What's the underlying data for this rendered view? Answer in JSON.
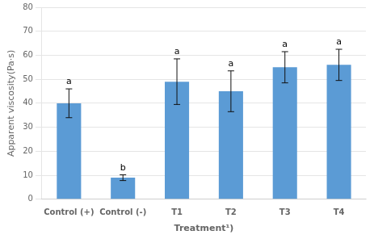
{
  "chart_data": {
    "type": "bar",
    "categories": [
      "Control (+)",
      "Control (-)",
      "T1",
      "T2",
      "T3",
      "T4"
    ],
    "values": [
      40.0,
      9.0,
      49.0,
      45.0,
      55.0,
      56.0
    ],
    "errors": [
      6.0,
      1.2,
      9.5,
      8.5,
      6.5,
      6.5
    ],
    "letters": [
      "a",
      "b",
      "a",
      "a",
      "a",
      "a"
    ],
    "color": "#5B9BD5",
    "xlabel": "Treatment¹)",
    "ylabel": "Apparent viscosity(Pa·s)",
    "ylim": [
      0,
      80
    ],
    "yticks": [
      0,
      10,
      20,
      30,
      40,
      50,
      60,
      70,
      80
    ],
    "grid": true
  }
}
